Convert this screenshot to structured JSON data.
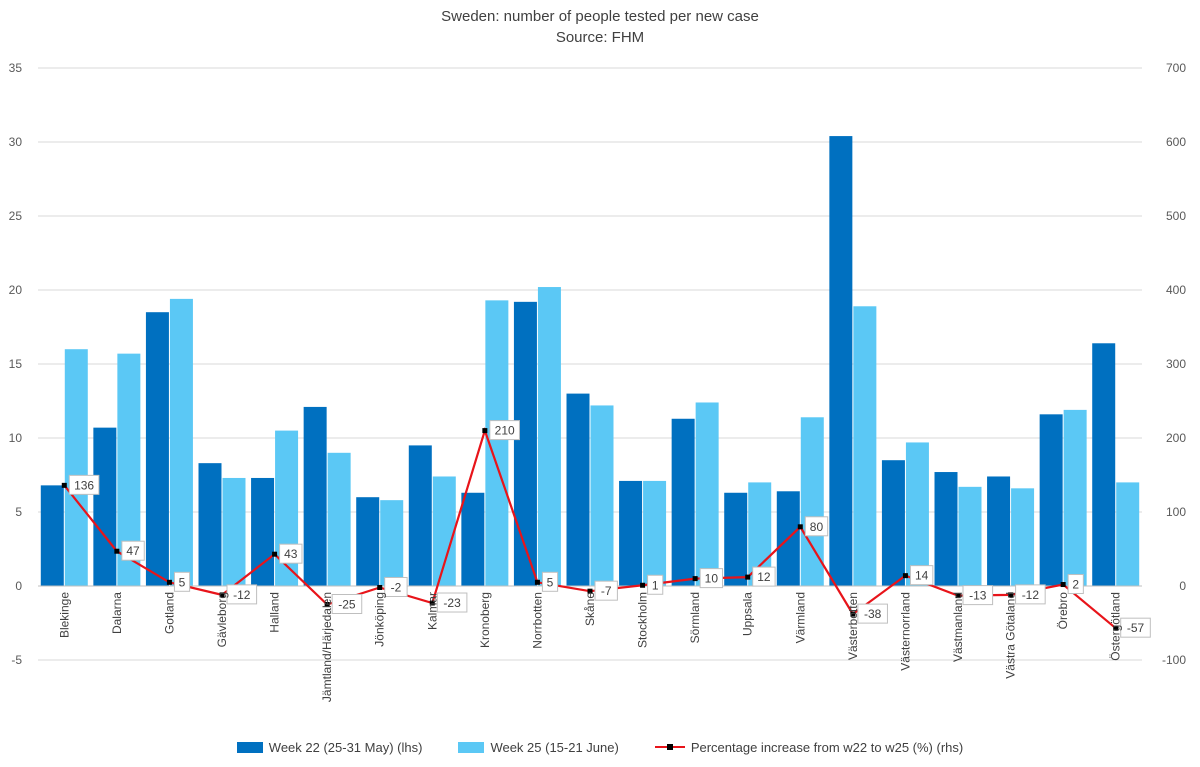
{
  "chart_data": {
    "type": "bar",
    "title": "Sweden: number of people tested per new case",
    "subtitle": "Source: FHM",
    "categories": [
      "Blekinge",
      "Dalarna",
      "Gotland",
      "Gävleborg",
      "Halland",
      "Jämtland/Härjedalen",
      "Jönköping",
      "Kalmar",
      "Kronoberg",
      "Norrbotten",
      "Skåne",
      "Stockholm",
      "Sörmland",
      "Uppsala",
      "Värmland",
      "Västerbotten",
      "Västernorrland",
      "Västmanland",
      "Västra Götaland",
      "Örebro",
      "Östergötland"
    ],
    "series": [
      {
        "name": "Week 22 (25-31 May) (lhs)",
        "type": "bar",
        "axis": "left",
        "color": "#0070c0",
        "values": [
          6.8,
          10.7,
          18.5,
          8.3,
          7.3,
          12.1,
          6.0,
          9.5,
          6.3,
          19.2,
          13.0,
          7.1,
          11.3,
          6.3,
          6.4,
          30.4,
          8.5,
          7.7,
          7.4,
          11.6,
          16.4
        ]
      },
      {
        "name": "Week 25 (15-21 June)",
        "type": "bar",
        "axis": "left",
        "color": "#5bc8f5",
        "values": [
          16.0,
          15.7,
          19.4,
          7.3,
          10.5,
          9.0,
          5.8,
          7.4,
          19.3,
          20.2,
          12.2,
          7.1,
          12.4,
          7.0,
          11.4,
          18.9,
          9.7,
          6.7,
          6.6,
          11.9,
          7.0
        ]
      },
      {
        "name": "Percentage increase from w22 to w25 (%) (rhs)",
        "type": "line",
        "axis": "right",
        "color": "#e8141a",
        "values": [
          136,
          47,
          5,
          -12,
          43,
          -25,
          -2,
          -23,
          210,
          5,
          -7,
          1,
          10,
          12,
          80,
          -38,
          14,
          -13,
          -12,
          2,
          -57
        ]
      }
    ],
    "left_axis": {
      "min": -5,
      "max": 35,
      "step": 5,
      "ticks": [
        "-5",
        "0",
        "5",
        "10",
        "15",
        "20",
        "25",
        "30",
        "35"
      ]
    },
    "right_axis": {
      "min": -100,
      "max": 700,
      "step": 100,
      "ticks": [
        "-100",
        "0",
        "100",
        "200",
        "300",
        "400",
        "500",
        "600",
        "700"
      ]
    },
    "grid": true,
    "legend_position": "bottom"
  }
}
